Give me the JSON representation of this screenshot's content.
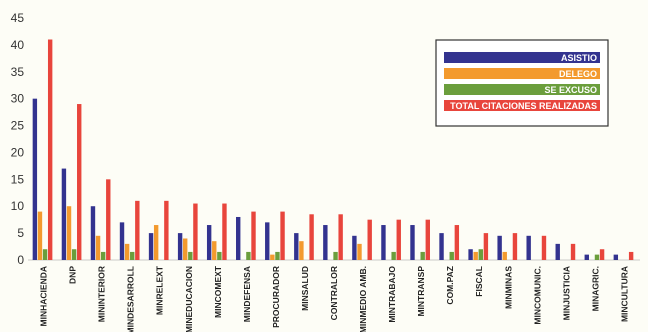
{
  "chart_data": {
    "type": "bar",
    "title": "",
    "xlabel": "",
    "ylabel": "",
    "ylim": [
      0,
      45
    ],
    "yticks": [
      0,
      5,
      10,
      15,
      20,
      25,
      30,
      35,
      40,
      45
    ],
    "grid": false,
    "legend_position": "top-right",
    "categories": [
      "MINHACIENDA",
      "DNP",
      "MININTERIOR",
      "MINDESARROLL",
      "MINRELEXT",
      "MINEDUCACION",
      "MINCOMEXT",
      "MINDEFENSA",
      "PROCURADOR",
      "MINSALUD",
      "CONTRALOR",
      "MINMEDIO AMB.",
      "MINTRABAJO",
      "MINTRANSP",
      "COM.PAZ",
      "FISCAL",
      "MINMINAS",
      "MINCOMUNIC.",
      "MINJUSTICIA",
      "MINAGRIC.",
      "MINCULTURA"
    ],
    "series": [
      {
        "name": "ASISTIO",
        "color": "#33338f",
        "values": [
          30,
          17,
          10,
          7,
          5,
          5,
          6.5,
          8,
          7,
          5,
          6.5,
          4.5,
          6.5,
          6.5,
          5,
          2,
          4.5,
          4.5,
          3,
          1,
          1
        ]
      },
      {
        "name": "DELEGO",
        "color": "#f39a2e",
        "values": [
          9,
          10,
          4.5,
          3,
          6.5,
          4,
          3.5,
          0,
          1,
          3.5,
          0,
          3,
          0,
          0,
          0,
          1.5,
          1.5,
          0,
          0,
          0,
          0
        ]
      },
      {
        "name": "SE EXCUSO",
        "color": "#6b9e3c",
        "values": [
          2,
          2,
          1.5,
          1.5,
          0,
          1.5,
          1.5,
          1.5,
          1.5,
          0,
          1.5,
          0,
          1.5,
          1.5,
          1.5,
          2,
          0,
          0,
          0,
          1,
          0
        ]
      },
      {
        "name": "TOTAL CITACIONES REALIZADAS",
        "color": "#e8453c",
        "values": [
          41,
          29,
          15,
          11,
          11,
          10.5,
          10.5,
          9,
          9,
          8.5,
          8.5,
          7.5,
          7.5,
          7.5,
          6.5,
          5,
          5,
          4.5,
          3,
          2,
          1.5
        ]
      }
    ]
  }
}
